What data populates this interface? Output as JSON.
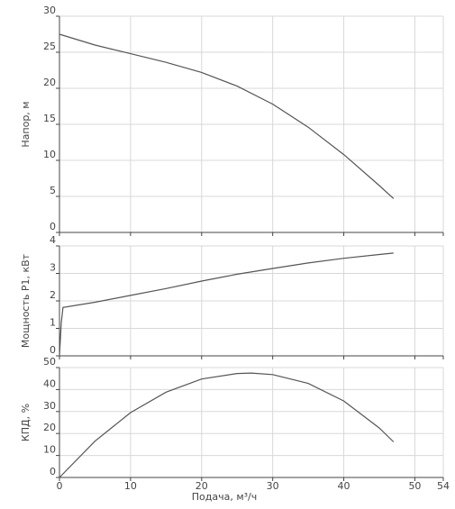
{
  "colors": {
    "curve": "#555555",
    "grid": "#d8d8d8",
    "axis": "#444444"
  },
  "chart_data": [
    {
      "type": "line",
      "ylabel": "Напор, м",
      "ylim": [
        0,
        30
      ],
      "yticks": [
        0,
        5,
        10,
        15,
        20,
        25,
        30
      ],
      "xlim": [
        0,
        54
      ],
      "xticks": [
        0,
        10,
        20,
        30,
        40,
        50,
        54
      ],
      "grid": true,
      "series": [
        {
          "x": [
            0,
            5,
            10,
            15,
            20,
            25,
            30,
            35,
            40,
            45,
            47
          ],
          "y": [
            27.5,
            26.0,
            24.8,
            23.6,
            22.2,
            20.3,
            17.8,
            14.6,
            10.8,
            6.5,
            4.7
          ]
        }
      ]
    },
    {
      "type": "line",
      "ylabel": "Мощность P1, кВт",
      "ylim": [
        0,
        4
      ],
      "yticks": [
        0,
        1,
        2,
        3,
        4
      ],
      "xlim": [
        0,
        54
      ],
      "xticks": [
        0,
        10,
        20,
        30,
        40,
        50,
        54
      ],
      "grid": true,
      "series": [
        {
          "x": [
            0,
            0.25,
            0.5,
            5,
            10,
            15,
            20,
            25,
            30,
            35,
            40,
            45,
            47
          ],
          "y": [
            0,
            1.2,
            1.76,
            1.95,
            2.2,
            2.45,
            2.72,
            2.97,
            3.18,
            3.38,
            3.55,
            3.69,
            3.74
          ]
        }
      ]
    },
    {
      "type": "line",
      "ylabel": "КПД, %",
      "xlabel": "Подача, м³/ч",
      "ylim": [
        0,
        50
      ],
      "yticks": [
        0,
        10,
        20,
        30,
        40,
        50
      ],
      "xlim": [
        0,
        54
      ],
      "xticks": [
        0,
        10,
        20,
        30,
        40,
        50,
        54
      ],
      "grid": true,
      "series": [
        {
          "x": [
            0,
            5,
            10,
            15,
            20,
            25,
            27,
            30,
            35,
            40,
            45,
            47
          ],
          "y": [
            0,
            16.5,
            29.5,
            38.8,
            44.8,
            47.3,
            47.5,
            46.8,
            42.8,
            34.8,
            22.5,
            16.2
          ]
        }
      ]
    }
  ]
}
